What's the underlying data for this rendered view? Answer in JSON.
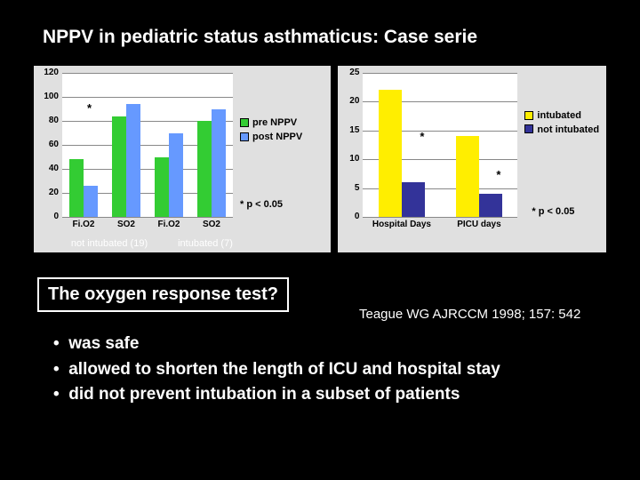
{
  "title": "NPPV in pediatric status asthmaticus: Case serie",
  "chart_left": {
    "type": "bar",
    "background_color": "#e0e0e0",
    "plot_bg": "#ffffff",
    "ylim": [
      0,
      120
    ],
    "ytick_step": 20,
    "categories": [
      "Fi.O2",
      "SO2",
      "Fi.O2",
      "SO2"
    ],
    "series": [
      {
        "name": "pre NPPV",
        "color": "#33cc33",
        "values": [
          48,
          84,
          50,
          80
        ]
      },
      {
        "name": "post NPPV",
        "color": "#6699ff",
        "values": [
          26,
          94,
          70,
          90
        ]
      }
    ],
    "legend_colors": {
      "pre": "#33cc33",
      "post": "#6699ff"
    },
    "asterisk_note": "* p < 0.05",
    "group_labels": [
      "not intubated (19)",
      "intubated (7)"
    ],
    "axis_font_size": 11,
    "legend_font_size": 11
  },
  "chart_right": {
    "type": "bar",
    "background_color": "#e0e0e0",
    "plot_bg": "#ffffff",
    "ylim": [
      0,
      25
    ],
    "ytick_step": 5,
    "categories": [
      "Hospital Days",
      "PICU days"
    ],
    "series": [
      {
        "name": "intubated",
        "color": "#ffee00",
        "values": [
          22,
          14
        ]
      },
      {
        "name": "not intubated",
        "color": "#333399",
        "values": [
          6,
          4
        ]
      }
    ],
    "legend_colors": {
      "intubated": "#ffee00",
      "not_intubated": "#333399"
    },
    "asterisk_note": "* p < 0.05",
    "axis_font_size": 11,
    "legend_font_size": 11
  },
  "footer_box": "The oxygen response test?",
  "citation": "Teague WG  AJRCCM 1998; 157: 542",
  "bullets": [
    "was safe",
    "allowed to shorten the length of ICU and hospital stay",
    "did not prevent intubation in a subset of patients"
  ],
  "bullet_marker": "•"
}
